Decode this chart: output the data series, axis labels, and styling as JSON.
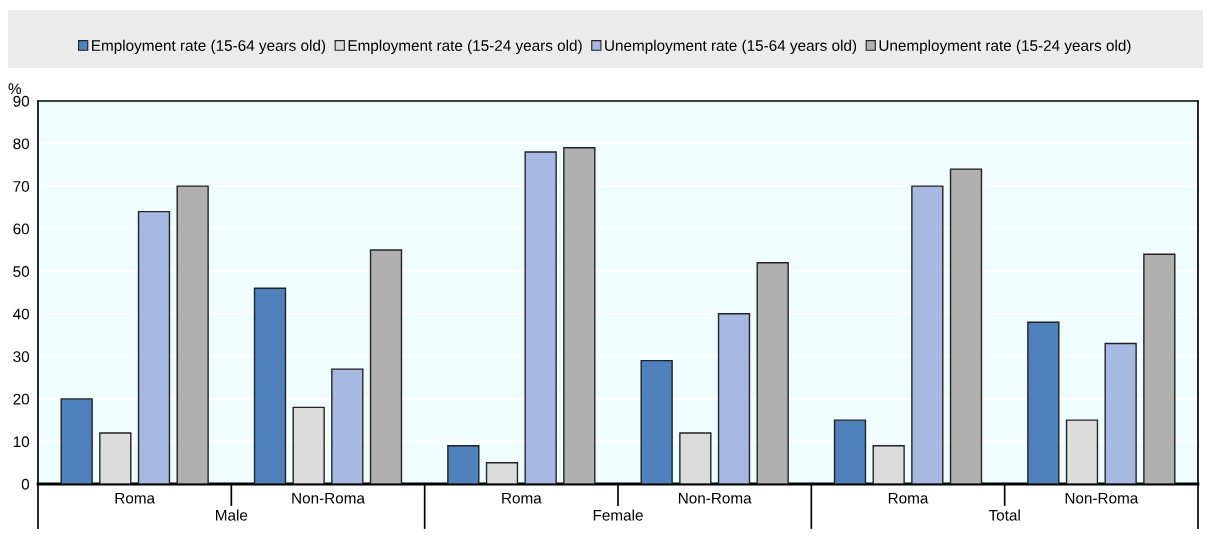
{
  "chart_data": {
    "type": "bar",
    "ylabel": "%",
    "categories": [
      "Roma",
      "Non-Roma",
      "Roma",
      "Non-Roma",
      "Roma",
      "Non-Roma"
    ],
    "annotations": [
      "Male",
      "Female",
      "Total"
    ],
    "series": [
      {
        "name": "Employment rate (15-64 years old)",
        "color": "#4f81bd",
        "values": [
          20,
          46,
          9,
          29,
          15,
          38
        ]
      },
      {
        "name": "Employment rate (15-24 years old)",
        "color": "#dcdcdc",
        "values": [
          12,
          18,
          5,
          12,
          9,
          15
        ]
      },
      {
        "name": "Unemployment rate (15-64 years old)",
        "color": "#a7b9e3",
        "values": [
          64,
          27,
          78,
          40,
          70,
          33
        ]
      },
      {
        "name": "Unemployment rate (15-24 years old)",
        "color": "#b0b0b0",
        "values": [
          70,
          55,
          79,
          52,
          74,
          54
        ]
      }
    ],
    "ylim": [
      0,
      90
    ],
    "yticks": [
      0,
      10,
      20,
      30,
      40,
      50,
      60,
      70,
      80,
      90
    ],
    "grid": "y",
    "legend": "top"
  }
}
